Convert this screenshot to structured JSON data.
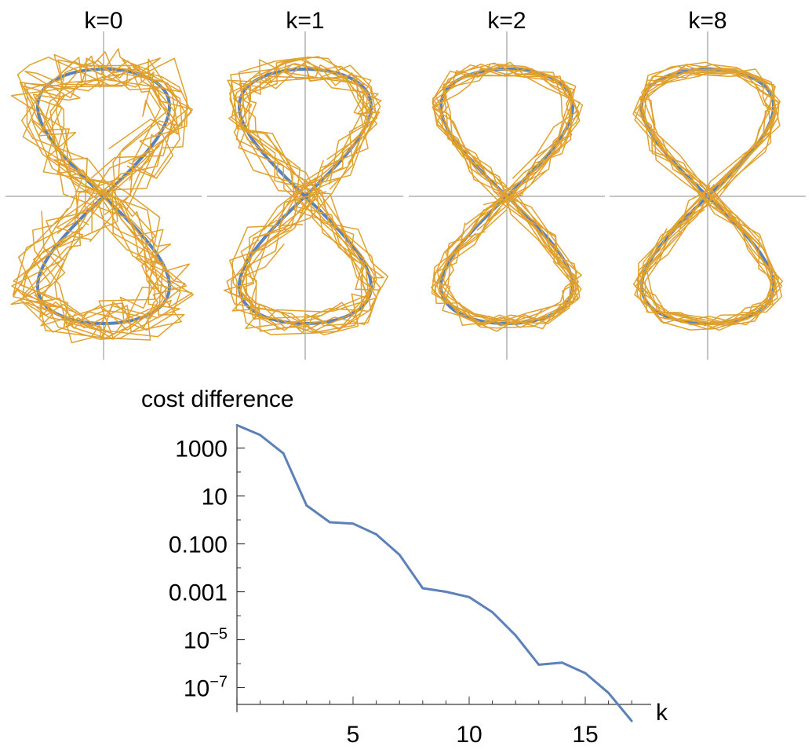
{
  "colors": {
    "curve": "#5b81b9",
    "trajectory": "#e0a12e",
    "axis": "#888888",
    "axis_dark": "#333333"
  },
  "panels": [
    {
      "title": "k=0",
      "k": 0
    },
    {
      "title": "k=1",
      "k": 1
    },
    {
      "title": "k=2",
      "k": 2
    },
    {
      "title": "k=8",
      "k": 8
    }
  ],
  "chart_data": {
    "type": "line",
    "title": "",
    "ylabel": "cost difference",
    "xlabel": "k",
    "yscale": "log",
    "xlim": [
      0,
      17.5
    ],
    "ylim_log10": [
      -8,
      4
    ],
    "x_ticks": [
      {
        "value": 5,
        "label": "5"
      },
      {
        "value": 10,
        "label": "10"
      },
      {
        "value": 15,
        "label": "15"
      }
    ],
    "y_ticks": [
      {
        "log10": 3,
        "base": "1000",
        "exp": ""
      },
      {
        "log10": 1,
        "base": "10",
        "exp": ""
      },
      {
        "log10": -1,
        "base": "0.100",
        "exp": ""
      },
      {
        "log10": -3,
        "base": "0.001",
        "exp": ""
      },
      {
        "log10": -5,
        "base": "10",
        "exp": "−5"
      },
      {
        "log10": -7,
        "base": "10",
        "exp": "−7"
      }
    ],
    "series": [
      {
        "x": [
          0,
          1,
          2,
          3,
          4,
          5,
          6,
          7,
          8,
          9,
          10,
          11,
          12,
          13,
          14,
          15,
          16,
          17
        ],
        "y": [
          9000,
          3500,
          600,
          4,
          0.8,
          0.7,
          0.25,
          0.035,
          0.0014,
          0.001,
          0.0006,
          0.00014,
          1.5e-05,
          9e-07,
          1.1e-06,
          4e-07,
          6e-08,
          4e-09
        ]
      }
    ]
  }
}
